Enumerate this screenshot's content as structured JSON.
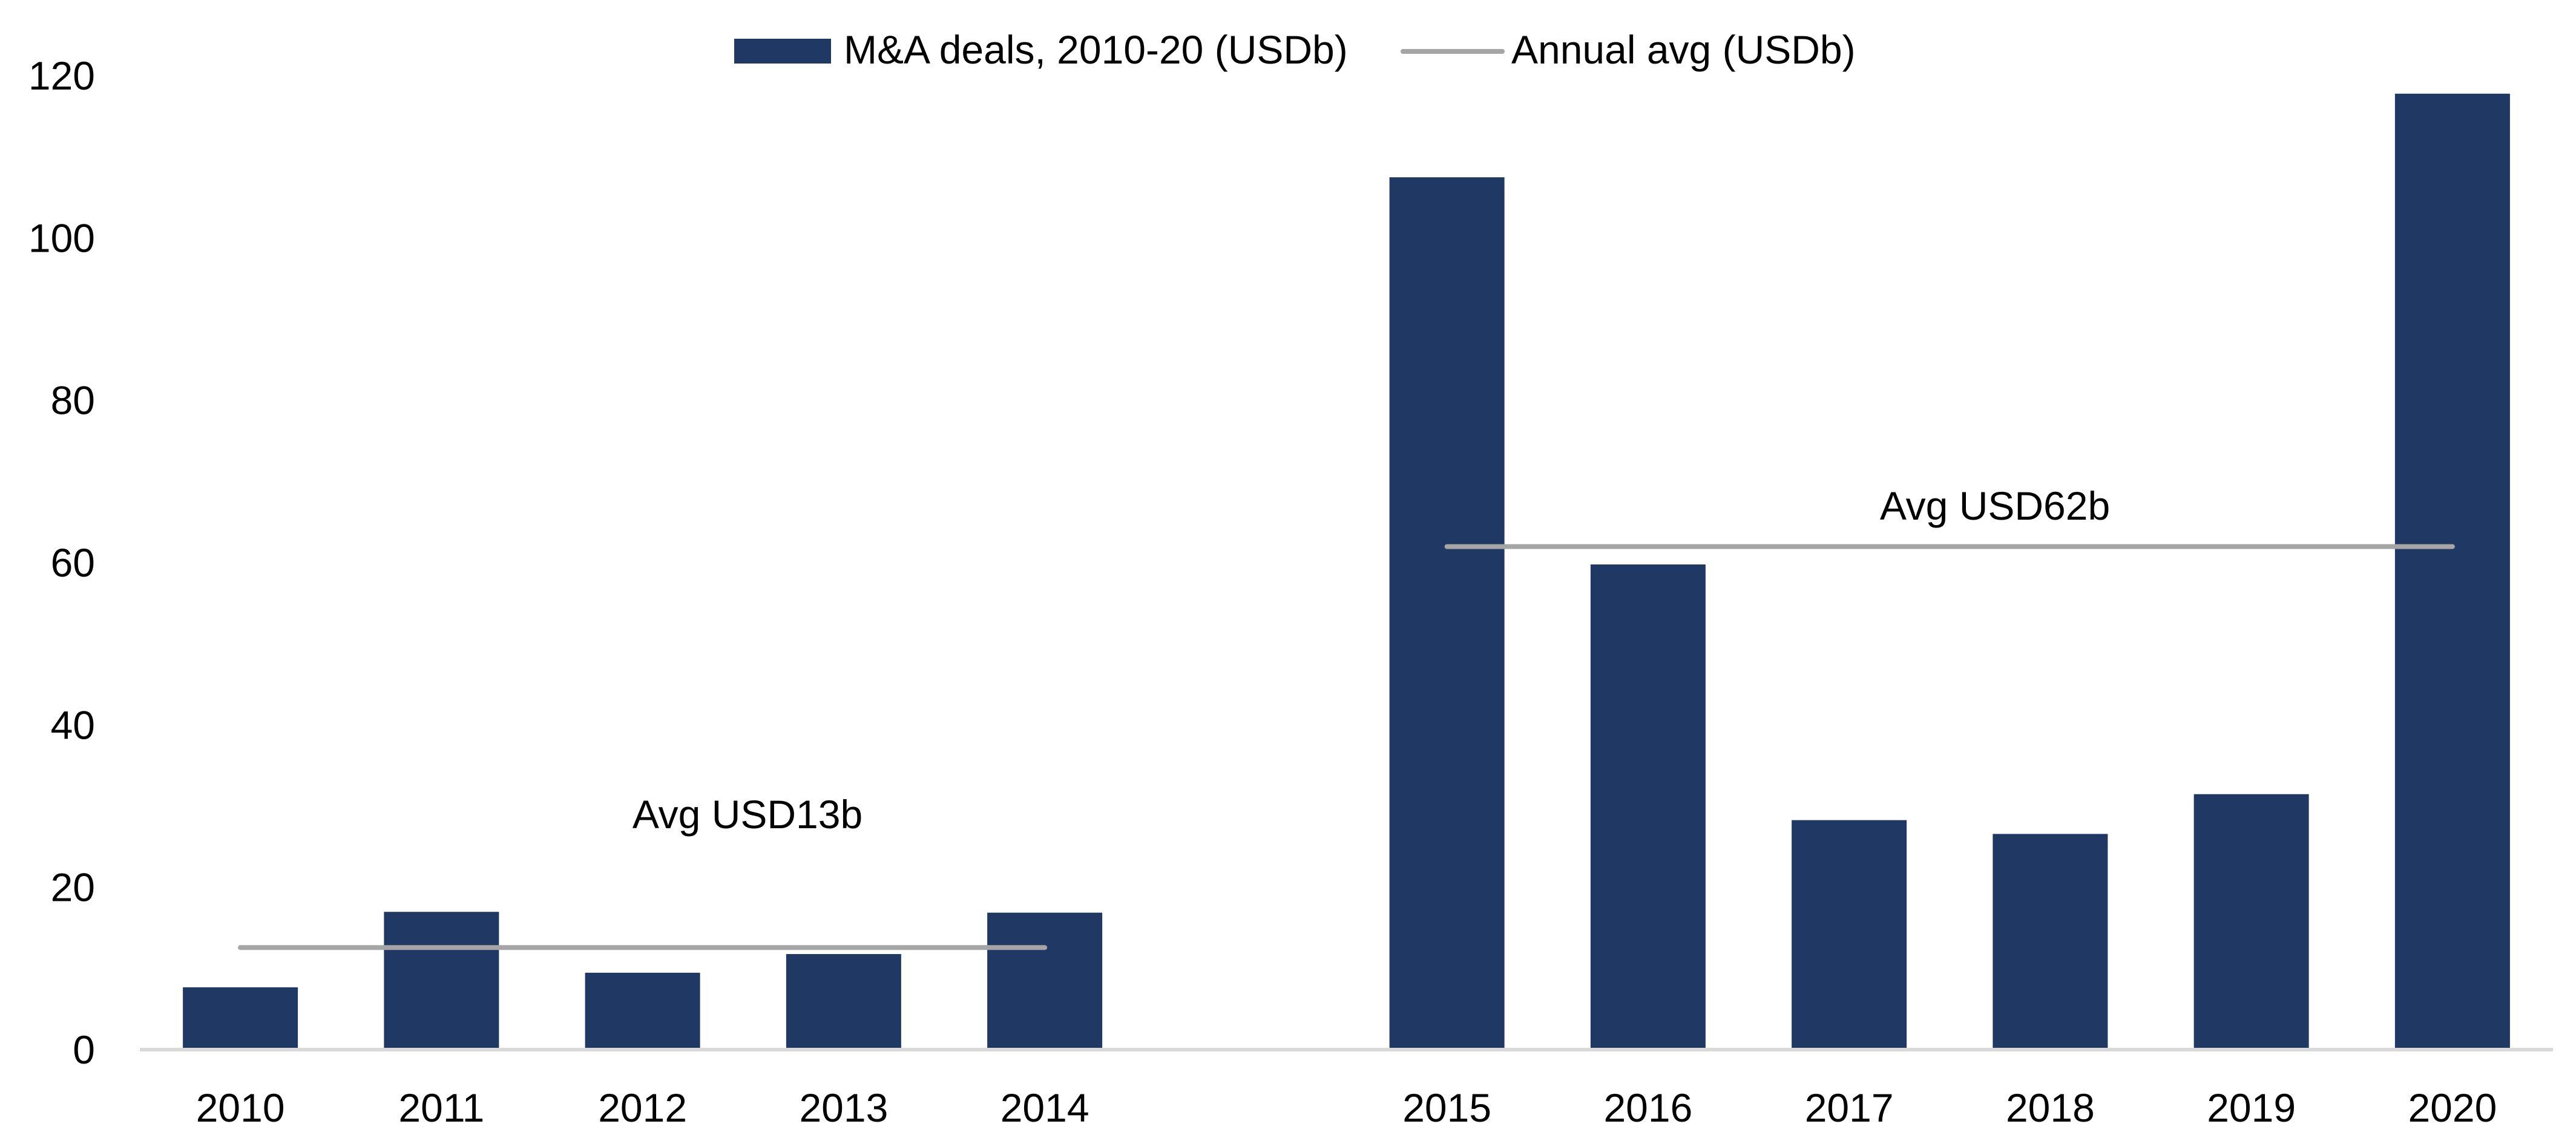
{
  "chart_data": {
    "type": "bar",
    "title": "",
    "xlabel": "",
    "ylabel": "",
    "ylim": [
      0,
      120
    ],
    "yticks": [
      "0",
      "20",
      "40",
      "60",
      "80",
      "100",
      "120"
    ],
    "grid": false,
    "legend_position": "top-center",
    "categories": [
      "2010",
      "2011",
      "2012",
      "2013",
      "2014",
      "",
      "2015",
      "2016",
      "2017",
      "2018",
      "2019",
      "2020"
    ],
    "series": [
      {
        "name": "M&A deals, 2010-20 (USDb)",
        "type": "bar",
        "color": "#203864",
        "values": [
          7.6,
          16.9,
          9.4,
          11.7,
          16.8,
          null,
          107.4,
          59.7,
          28.2,
          26.5,
          31.4,
          117.7
        ]
      },
      {
        "name": "Annual avg (USDb)",
        "type": "line",
        "color": "#A5A5A5",
        "segments": [
          {
            "from": "2010",
            "to": "2014",
            "value": 12.5
          },
          {
            "from": "2015",
            "to": "2020",
            "value": 61.9
          }
        ]
      }
    ],
    "annotations": [
      {
        "text": "Avg USD13b",
        "near": "2012",
        "value": 29
      },
      {
        "text": "Avg USD62b",
        "near": "2017-2018",
        "value": 67
      }
    ],
    "axis_color": "#D9D9D9"
  }
}
